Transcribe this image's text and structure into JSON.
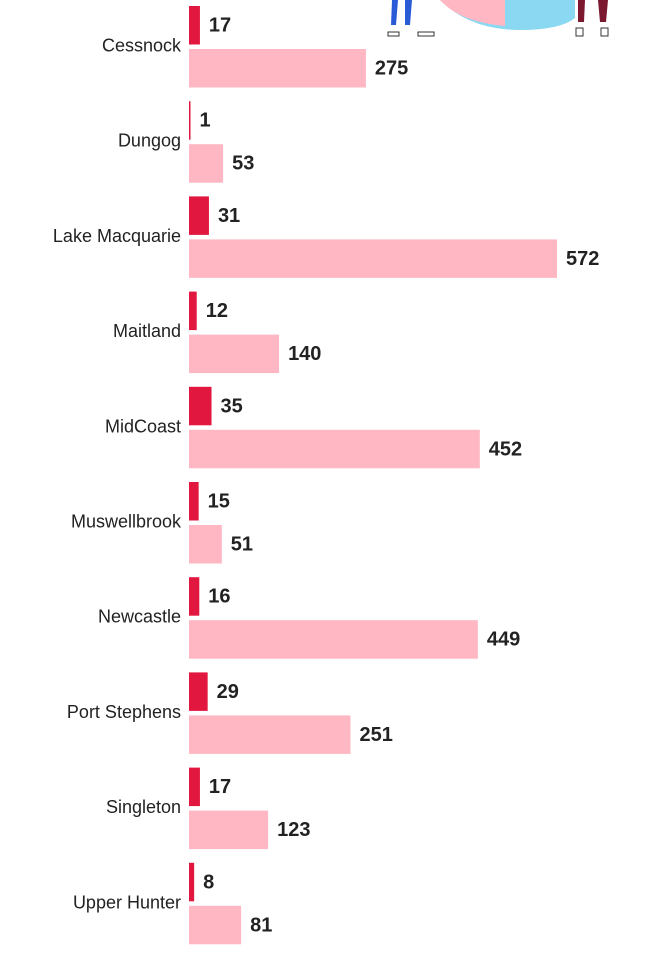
{
  "chart_data": {
    "type": "bar",
    "orientation": "horizontal",
    "categories": [
      "Cessnock",
      "Dungog",
      "Lake Macquarie",
      "Maitland",
      "MidCoast",
      "Muswellbrook",
      "Newcastle",
      "Port Stephens",
      "Singleton",
      "Upper Hunter"
    ],
    "series": [
      {
        "color": "#e2173f",
        "values": [
          17,
          1,
          31,
          12,
          35,
          15,
          16,
          29,
          17,
          8
        ]
      },
      {
        "color": "#ffb7c3",
        "values": [
          275,
          53,
          572,
          140,
          452,
          51,
          449,
          251,
          123,
          81
        ]
      }
    ]
  }
}
